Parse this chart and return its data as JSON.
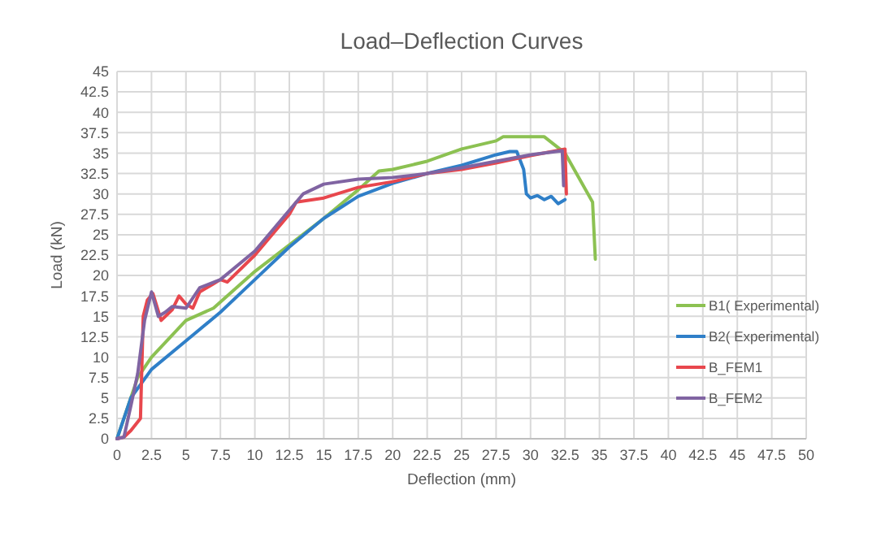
{
  "chart_data": {
    "type": "line",
    "title": "Load–Deflection Curves",
    "xlabel": "Deflection (mm)",
    "ylabel": "Load (kN)",
    "xlim": [
      0,
      50
    ],
    "ylim": [
      0,
      45
    ],
    "xticks": [
      0,
      2.5,
      5,
      7.5,
      10,
      12.5,
      15,
      17.5,
      20,
      22.5,
      25,
      27.5,
      30,
      32.5,
      35,
      37.5,
      40,
      42.5,
      45,
      47.5,
      50
    ],
    "yticks": [
      0,
      2.5,
      5,
      7.5,
      10,
      12.5,
      15,
      17.5,
      20,
      22.5,
      25,
      27.5,
      30,
      32.5,
      35,
      37.5,
      40,
      42.5,
      45
    ],
    "grid": true,
    "legend": "right",
    "line_style": "solid",
    "series": [
      {
        "name": "B1( Experimental)",
        "color": "#8cc152",
        "x": [
          0,
          1.5,
          2.5,
          5,
          7,
          10,
          15,
          17.5,
          19,
          20,
          22.5,
          25,
          27.5,
          28,
          31,
          32.5,
          34.5,
          34.7
        ],
        "values": [
          0,
          7.5,
          10,
          14.5,
          16,
          20.5,
          27,
          30.5,
          32.8,
          33,
          34,
          35.5,
          36.5,
          37,
          37,
          35,
          29,
          22
        ]
      },
      {
        "name": "B2( Experimental)",
        "color": "#2f7fc8",
        "x": [
          0,
          1,
          2.5,
          5,
          7.5,
          10,
          12.5,
          15,
          17.5,
          20,
          22.5,
          25,
          27.5,
          28.5,
          29,
          29.5,
          29.7,
          30,
          30.5,
          31,
          31.5,
          32,
          32.5
        ],
        "values": [
          0,
          5,
          8.5,
          12,
          15.5,
          19.5,
          23.5,
          27,
          29.7,
          31.3,
          32.5,
          33.5,
          34.8,
          35.2,
          35.2,
          33,
          30,
          29.5,
          29.8,
          29.3,
          29.7,
          28.8,
          29.3
        ]
      },
      {
        "name": "B_FEM1",
        "color": "#e8474d",
        "x": [
          0,
          0.5,
          1,
          1.7,
          1.9,
          2.2,
          2.6,
          3.2,
          4,
          4.5,
          5,
          5.5,
          6,
          7,
          7.5,
          8,
          10,
          12.5,
          13,
          15,
          17.5,
          20,
          22.5,
          25,
          27.5,
          30,
          32.5,
          32.6
        ],
        "values": [
          0,
          0.2,
          1,
          2.5,
          15,
          17,
          17.8,
          14.5,
          15.8,
          17.5,
          16.5,
          16,
          18,
          19,
          19.5,
          19.2,
          22.5,
          27.5,
          29,
          29.5,
          30.8,
          31.5,
          32.5,
          33,
          33.8,
          34.7,
          35.5,
          30
        ]
      },
      {
        "name": "B_FEM2",
        "color": "#8064a2",
        "x": [
          0,
          0.5,
          1,
          1.5,
          2,
          2.5,
          3,
          3.5,
          4,
          5,
          6,
          7.5,
          10,
          12.5,
          13.5,
          15,
          17.5,
          20,
          22.5,
          25,
          27.5,
          30,
          32.3,
          32.4
        ],
        "values": [
          0,
          0.2,
          4,
          8,
          14.5,
          18,
          15,
          15.5,
          16.2,
          16,
          18.5,
          19.5,
          23,
          28,
          30,
          31.2,
          31.8,
          32,
          32.5,
          33.2,
          34,
          34.8,
          35.3,
          31
        ]
      }
    ]
  }
}
